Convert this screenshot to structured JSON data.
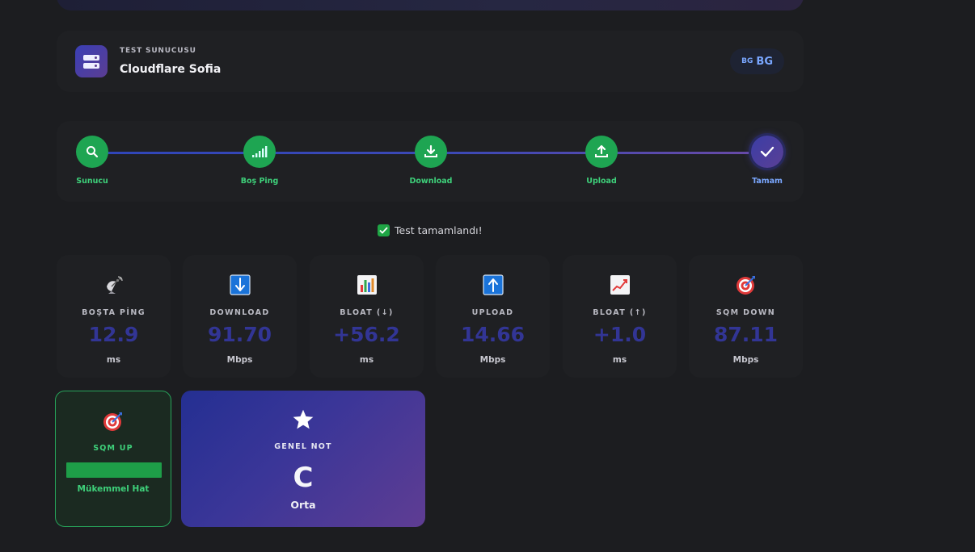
{
  "server": {
    "label": "TEST SUNUCUSU",
    "name": "Cloudflare Sofia",
    "country_small": "BG",
    "country": "BG"
  },
  "steps": [
    {
      "label": "Sunucu",
      "icon": "search-icon"
    },
    {
      "label": "Boş Ping",
      "icon": "signal-icon"
    },
    {
      "label": "Download",
      "icon": "download-icon"
    },
    {
      "label": "Upload",
      "icon": "upload-icon"
    },
    {
      "label": "Tamam",
      "icon": "check-icon"
    }
  ],
  "status": {
    "text": "Test tamamlandı!",
    "icon": "check-box-icon"
  },
  "metrics": [
    {
      "label": "BOŞTA PİNG",
      "value": "12.9",
      "unit": "ms",
      "icon": "satellite-dish-icon"
    },
    {
      "label": "DOWNLOAD",
      "value": "91.70",
      "unit": "Mbps",
      "icon": "down-arrow-icon"
    },
    {
      "label": "BLOAT (↓)",
      "value": "+56.2",
      "unit": "ms",
      "icon": "bar-chart-icon"
    },
    {
      "label": "UPLOAD",
      "value": "14.66",
      "unit": "Mbps",
      "icon": "up-arrow-icon"
    },
    {
      "label": "BLOAT (↑)",
      "value": "+1.0",
      "unit": "ms",
      "icon": "trend-chart-icon"
    },
    {
      "label": "SQM DOWN",
      "value": "87.11",
      "unit": "Mbps",
      "icon": "target-icon"
    }
  ],
  "sqm_up": {
    "label": "SQM UP",
    "rating": "Mükemmel Hat",
    "icon": "target-icon",
    "bar_fill": 1.0
  },
  "grade": {
    "label": "GENEL NOT",
    "grade": "C",
    "text": "Orta",
    "icon": "star-icon"
  },
  "colors": {
    "background": "#1c1d20",
    "card": "#1f2023",
    "success": "#1ea552",
    "accent": "#323595",
    "link": "#7aa7ff"
  }
}
